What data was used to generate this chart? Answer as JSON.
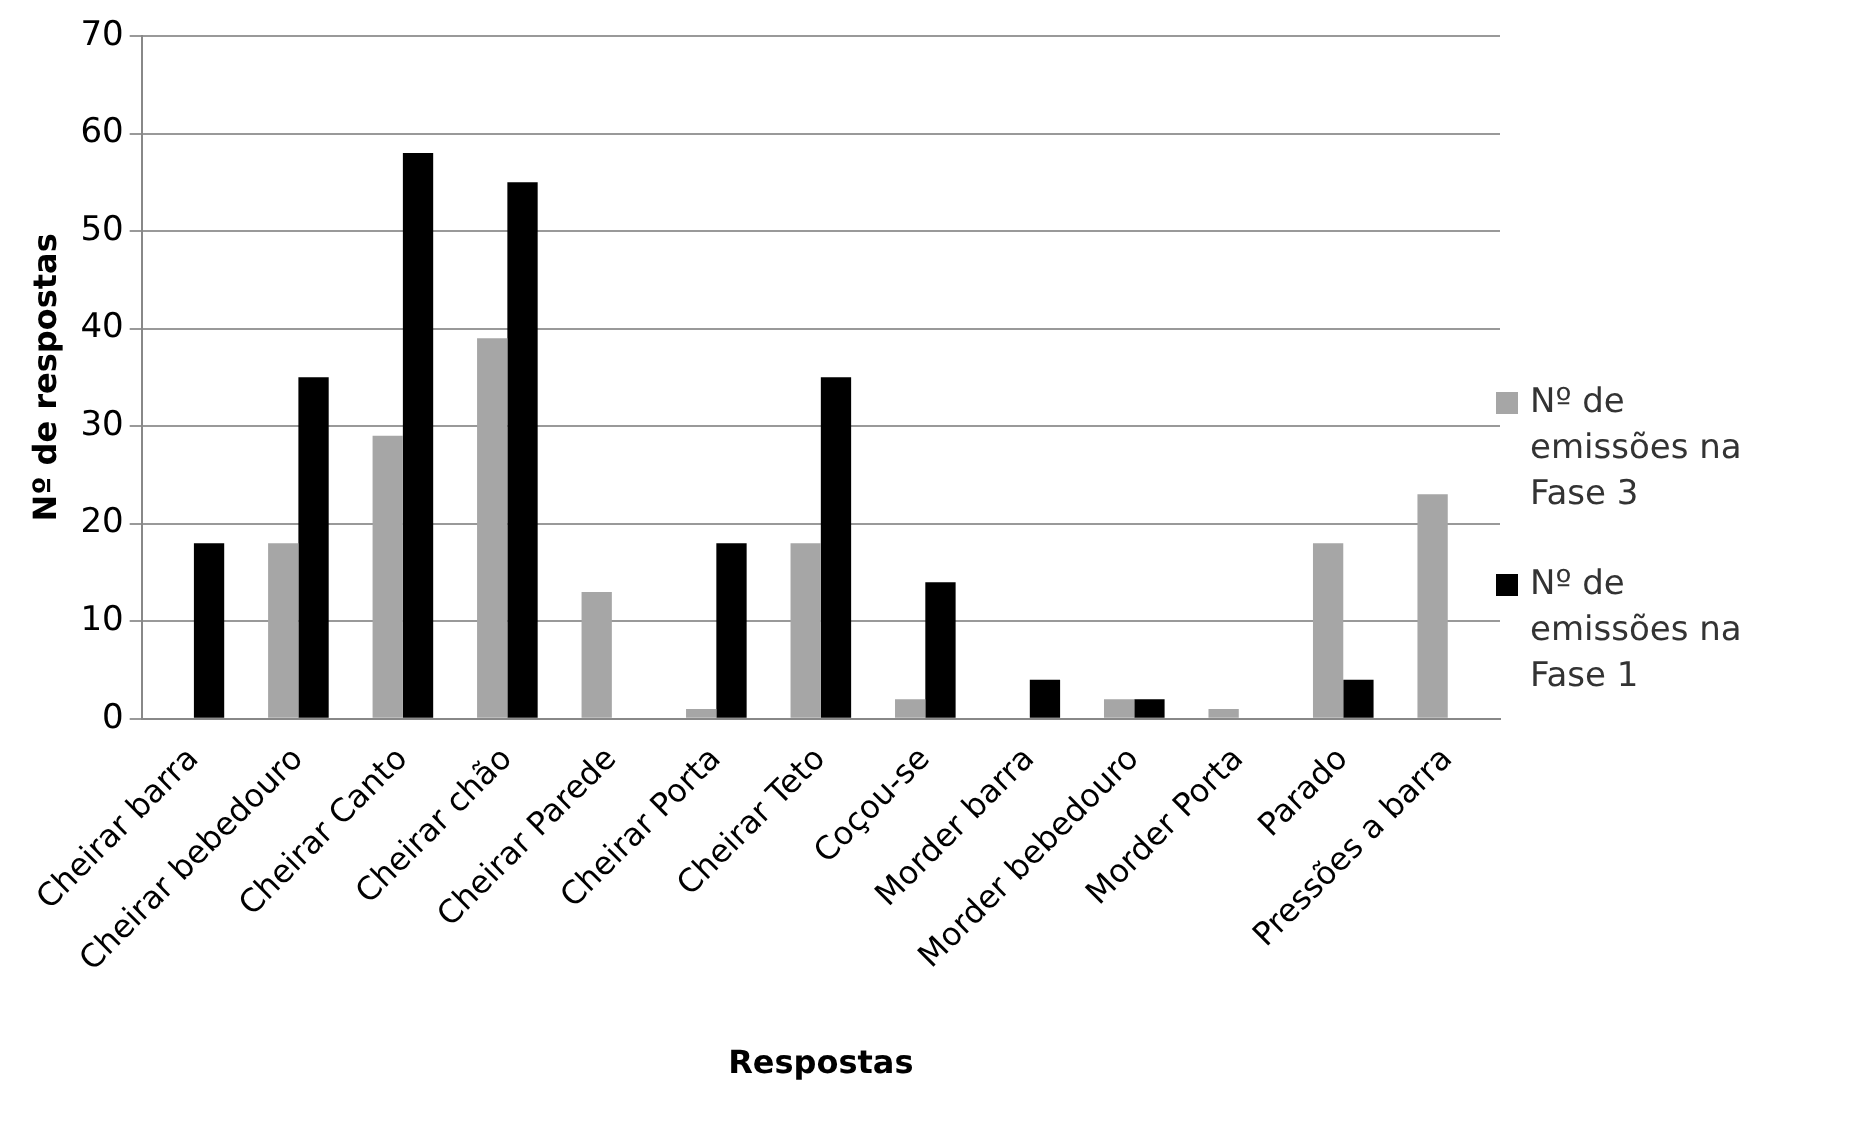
{
  "chart_data": {
    "type": "bar",
    "xlabel": "Respostas",
    "ylabel": "Nº de respostas",
    "categories": [
      "Cheirar barra",
      "Cheirar bebedouro",
      "Cheirar Canto",
      "Cheirar chão",
      "Cheirar Parede",
      "Cheirar Porta",
      "Cheirar Teto",
      "Coçou-se",
      "Morder barra",
      "Morder bebedouro",
      "Morder Porta",
      "Parado",
      "Pressões a barra"
    ],
    "series": [
      {
        "name": "Nº de emissões na Fase 3",
        "color": "#a6a6a6",
        "values": [
          0,
          18,
          29,
          39,
          13,
          1,
          18,
          2,
          0,
          2,
          1,
          18,
          23
        ]
      },
      {
        "name": "Nº de emissões na Fase 1",
        "color": "#000000",
        "values": [
          18,
          35,
          58,
          55,
          0,
          18,
          35,
          14,
          4,
          2,
          0,
          4,
          0
        ]
      }
    ],
    "ylim": [
      0,
      70
    ],
    "yticks": [
      0,
      10,
      20,
      30,
      40,
      50,
      60,
      70
    ],
    "grid": "y",
    "legend": "right"
  }
}
